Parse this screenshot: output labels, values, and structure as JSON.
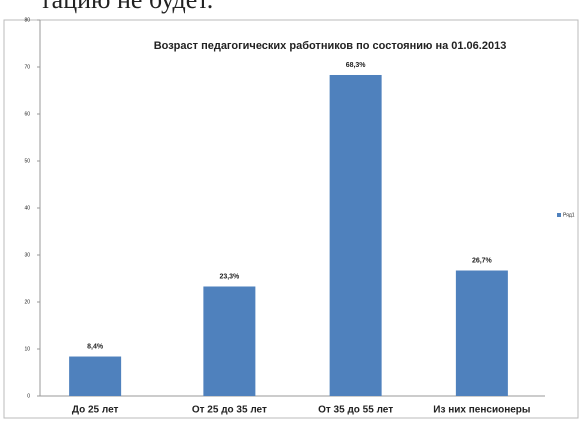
{
  "page_text": "тацию не будет.",
  "chart_data": {
    "type": "bar",
    "title": "Возраст педагогических работников по состоянию на 01.06.2013",
    "categories": [
      "До 25 лет",
      "От 25 до 35 лет",
      "От 35 до 55 лет",
      "Из них пенсионеры"
    ],
    "series": [
      {
        "name": "Ряд1",
        "color": "#4f81bd",
        "values": [
          8.4,
          23.3,
          68.3,
          26.7
        ],
        "value_labels": [
          "8,4%",
          "23,3%",
          "68,3%",
          "26,7%"
        ]
      }
    ],
    "ylim": [
      0,
      80
    ],
    "yticks": [
      0,
      10,
      20,
      30,
      40,
      50,
      60,
      70,
      80
    ],
    "grid": false,
    "legend": "right"
  }
}
